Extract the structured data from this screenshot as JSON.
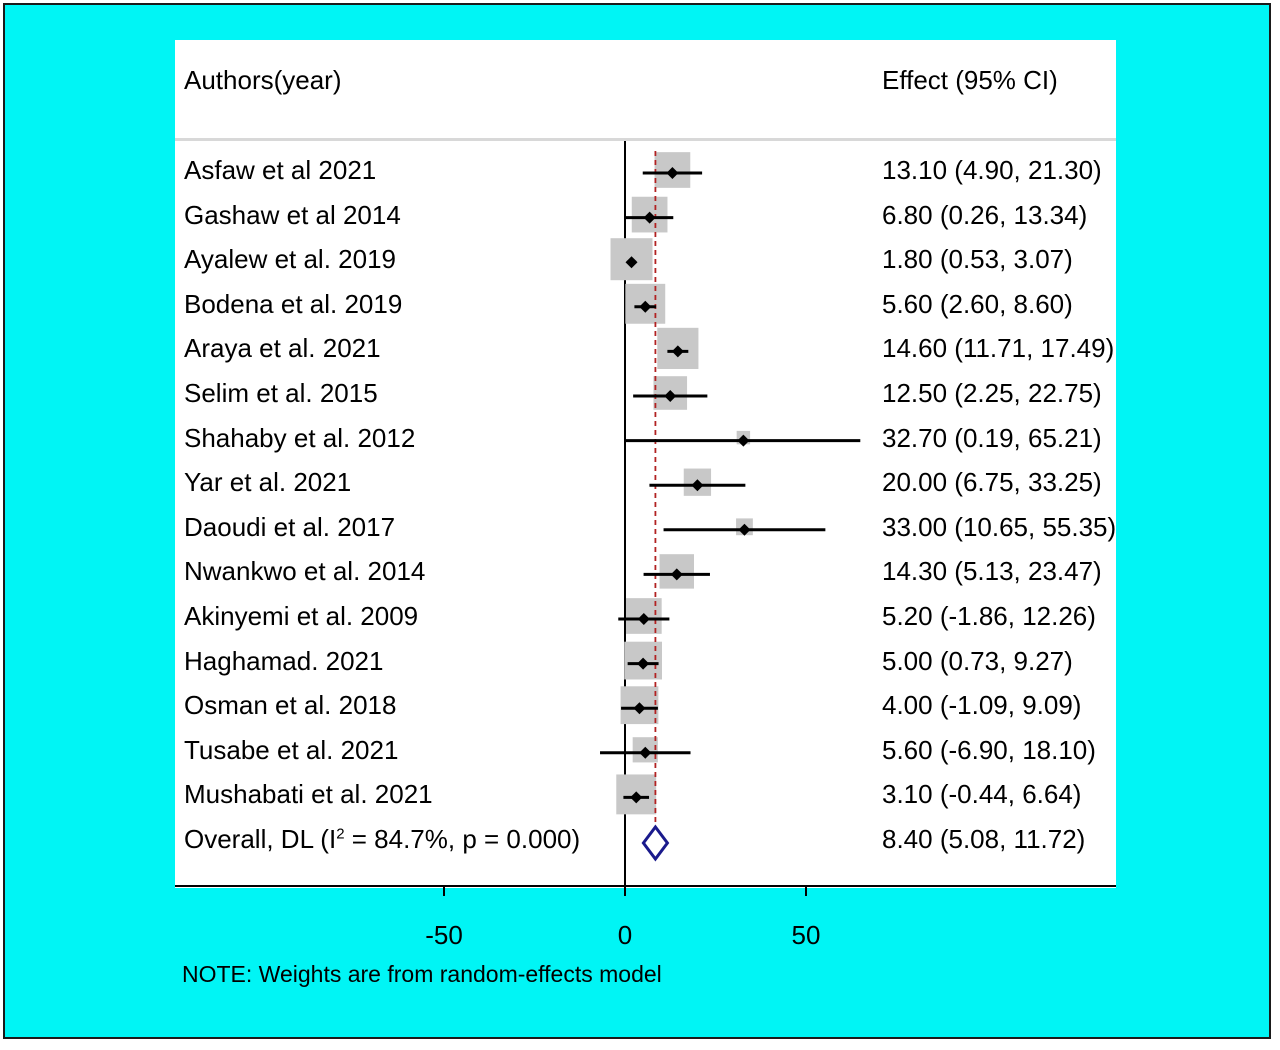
{
  "colors": {
    "outer_background": "#00f5f5",
    "plot_background": "#ffffff",
    "weight_box": "#c8c8c8",
    "point": "#000000",
    "overall_diamond": "#1a1a8c",
    "reference_line": "#b22222"
  },
  "header": {
    "study_col": "Authors(year)",
    "effect_col": "Effect (95% CI)"
  },
  "note": "NOTE: Weights are from random-effects model",
  "chart_data": {
    "type": "forest",
    "title": "",
    "xlabel": "",
    "xticks": [
      -50,
      0,
      50
    ],
    "x_domain": [
      -50,
      50
    ],
    "null_line": 0,
    "overall_line": 8.4,
    "studies": [
      {
        "label": "Asfaw et al 2021",
        "effect": 13.1,
        "lo": 4.9,
        "hi": 21.3,
        "effect_text": "13.10 (4.90, 21.30)",
        "box": 0.85
      },
      {
        "label": "Gashaw et al 2014",
        "effect": 6.8,
        "lo": 0.26,
        "hi": 13.34,
        "effect_text": "6.80 (0.26, 13.34)",
        "box": 0.85
      },
      {
        "label": "Ayalew et al.  2019",
        "effect": 1.8,
        "lo": 0.53,
        "hi": 3.07,
        "effect_text": "1.80 (0.53, 3.07)",
        "box": 1.0
      },
      {
        "label": "Bodena et al. 2019",
        "effect": 5.6,
        "lo": 2.6,
        "hi": 8.6,
        "effect_text": "5.60 (2.60, 8.60)",
        "box": 0.95
      },
      {
        "label": "Araya et al. 2021",
        "effect": 14.6,
        "lo": 11.71,
        "hi": 17.49,
        "effect_text": "14.60 (11.71, 17.49)",
        "box": 0.98
      },
      {
        "label": "Selim et al. 2015",
        "effect": 12.5,
        "lo": 2.25,
        "hi": 22.75,
        "effect_text": "12.50 (2.25, 22.75)",
        "box": 0.8
      },
      {
        "label": "Shahaby et al. 2012",
        "effect": 32.7,
        "lo": 0.19,
        "hi": 65.21,
        "effect_text": "32.70 (0.19, 65.21)",
        "box": 0.32
      },
      {
        "label": "Yar et al. 2021",
        "effect": 20.0,
        "lo": 6.75,
        "hi": 33.25,
        "effect_text": "20.00 (6.75, 33.25)",
        "box": 0.65
      },
      {
        "label": "Daoudi et al. 2017",
        "effect": 33.0,
        "lo": 10.65,
        "hi": 55.35,
        "effect_text": "33.00 (10.65, 55.35)",
        "box": 0.4
      },
      {
        "label": "Nwankwo et al. 2014",
        "effect": 14.3,
        "lo": 5.13,
        "hi": 23.47,
        "effect_text": "14.30 (5.13, 23.47)",
        "box": 0.82
      },
      {
        "label": "Akinyemi et al. 2009",
        "effect": 5.2,
        "lo": -1.86,
        "hi": 12.26,
        "effect_text": "5.20 (-1.86, 12.26)",
        "box": 0.85
      },
      {
        "label": "Haghamad. 2021",
        "effect": 5.0,
        "lo": 0.73,
        "hi": 9.27,
        "effect_text": "5.00 (0.73, 9.27)",
        "box": 0.9
      },
      {
        "label": "Osman et al. 2018",
        "effect": 4.0,
        "lo": -1.09,
        "hi": 9.09,
        "effect_text": "4.00 (-1.09, 9.09)",
        "box": 0.9
      },
      {
        "label": "Tusabe et al. 2021",
        "effect": 5.6,
        "lo": -6.9,
        "hi": 18.1,
        "effect_text": "5.60 (-6.90, 18.10)",
        "box": 0.6
      },
      {
        "label": "Mushabati et al. 2021",
        "effect": 3.1,
        "lo": -0.44,
        "hi": 6.64,
        "effect_text": "3.10 (-0.44, 6.64)",
        "box": 0.95
      }
    ],
    "overall": {
      "label": "Overall, DL (I",
      "label_superscript": "2",
      "label_suffix": " = 84.7%, p = 0.000)",
      "effect": 8.4,
      "lo": 5.08,
      "hi": 11.72,
      "effect_text": "8.40 (5.08, 11.72)"
    }
  }
}
